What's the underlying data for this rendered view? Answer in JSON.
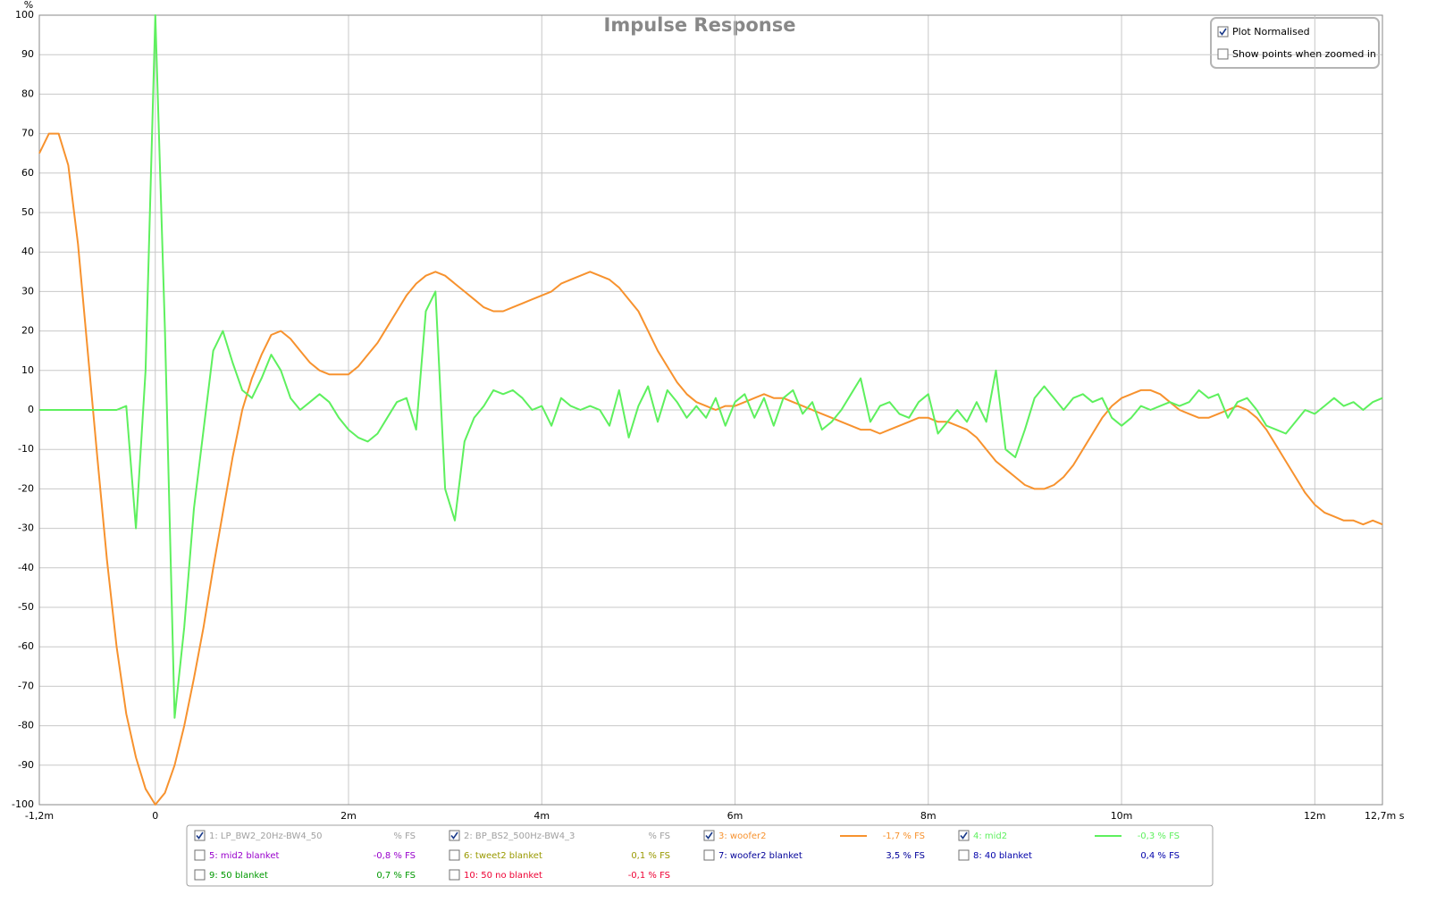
{
  "chart_data": {
    "type": "line",
    "title": "Impulse Response",
    "y_label": "%",
    "xlim": [
      -1.2,
      12.7
    ],
    "ylim": [
      -100,
      100
    ],
    "xticks": [
      {
        "value": -1.2,
        "label": "-1,2m"
      },
      0,
      {
        "value": 2,
        "label": "2m"
      },
      {
        "value": 4,
        "label": "4m"
      },
      {
        "value": 6,
        "label": "6m"
      },
      {
        "value": 8,
        "label": "8m"
      },
      {
        "value": 10,
        "label": "10m"
      },
      {
        "value": 12,
        "label": "12m"
      },
      {
        "value": 12.7,
        "label": "12,7m s"
      }
    ],
    "yticks": [
      -100,
      -90,
      -80,
      -70,
      -60,
      -50,
      -40,
      -30,
      -20,
      -10,
      0,
      10,
      20,
      30,
      40,
      50,
      60,
      70,
      80,
      90,
      100
    ],
    "grid": true,
    "x": [
      -1.2,
      -1.1,
      -1,
      -0.9,
      -0.8,
      -0.7,
      -0.6,
      -0.5,
      -0.4,
      -0.3,
      -0.2,
      -0.1,
      0,
      0.1,
      0.2,
      0.3,
      0.4,
      0.5,
      0.6,
      0.7,
      0.8,
      0.9,
      1,
      1.1,
      1.2,
      1.3,
      1.4,
      1.5,
      1.6,
      1.7,
      1.8,
      1.9,
      2,
      2.1,
      2.2,
      2.3,
      2.4,
      2.5,
      2.6,
      2.7,
      2.8,
      2.9,
      3,
      3.1,
      3.2,
      3.3,
      3.4,
      3.5,
      3.6,
      3.7,
      3.8,
      3.9,
      4,
      4.1,
      4.2,
      4.3,
      4.4,
      4.5,
      4.6,
      4.7,
      4.8,
      4.9,
      5,
      5.1,
      5.2,
      5.3,
      5.4,
      5.5,
      5.6,
      5.7,
      5.8,
      5.9,
      6,
      6.1,
      6.2,
      6.3,
      6.4,
      6.5,
      6.6,
      6.7,
      6.8,
      6.9,
      7,
      7.1,
      7.2,
      7.3,
      7.4,
      7.5,
      7.6,
      7.7,
      7.8,
      7.9,
      8,
      8.1,
      8.2,
      8.3,
      8.4,
      8.5,
      8.6,
      8.7,
      8.8,
      8.9,
      9,
      9.1,
      9.2,
      9.3,
      9.4,
      9.5,
      9.6,
      9.7,
      9.8,
      9.9,
      10,
      10.1,
      10.2,
      10.3,
      10.4,
      10.5,
      10.6,
      10.7,
      10.8,
      10.9,
      11,
      11.1,
      11.2,
      11.3,
      11.4,
      11.5,
      11.6,
      11.7,
      11.8,
      11.9,
      12,
      12.1,
      12.2,
      12.3,
      12.4,
      12.5,
      12.6,
      12.7
    ],
    "series": [
      {
        "name": "1: LP_BW2_20Hz-BW4_50",
        "color": "#a0a0a0",
        "checked": true,
        "readout": "% FS"
      },
      {
        "name": "2: BP_BS2_500Hz-BW4_3",
        "color": "#a0a0a0",
        "checked": true,
        "readout": "% FS"
      },
      {
        "name": "3: woofer2",
        "color": "#f7922e",
        "checked": true,
        "readout": "-1,7 % FS",
        "values": [
          65,
          70,
          70,
          62,
          42,
          15,
          -12,
          -38,
          -60,
          -77,
          -88,
          -96,
          -100,
          -97,
          -90,
          -80,
          -68,
          -55,
          -40,
          -26,
          -12,
          0,
          8,
          14,
          19,
          20,
          18,
          15,
          12,
          10,
          9,
          9,
          9,
          11,
          14,
          17,
          21,
          25,
          29,
          32,
          34,
          35,
          34,
          32,
          30,
          28,
          26,
          25,
          25,
          26,
          27,
          28,
          29,
          30,
          32,
          33,
          34,
          35,
          34,
          33,
          31,
          28,
          25,
          20,
          15,
          11,
          7,
          4,
          2,
          1,
          0,
          1,
          1,
          2,
          3,
          4,
          3,
          3,
          2,
          1,
          0,
          -1,
          -2,
          -3,
          -4,
          -5,
          -5,
          -6,
          -5,
          -4,
          -3,
          -2,
          -2,
          -3,
          -3,
          -4,
          -5,
          -7,
          -10,
          -13,
          -15,
          -17,
          -19,
          -20,
          -20,
          -19,
          -17,
          -14,
          -10,
          -6,
          -2,
          1,
          3,
          4,
          5,
          5,
          4,
          2,
          0,
          -1,
          -2,
          -2,
          -1,
          0,
          1,
          0,
          -2,
          -5,
          -9,
          -13,
          -17,
          -21,
          -24,
          -26,
          -27,
          -28,
          -28,
          -29,
          -28,
          -29
        ]
      },
      {
        "name": "4: mid2",
        "color": "#5ef05e",
        "checked": true,
        "readout": "-0,3 % FS",
        "values": [
          0,
          0,
          0,
          0,
          0,
          0,
          0,
          0,
          0,
          1,
          -30,
          10,
          100,
          20,
          -78,
          -55,
          -25,
          -5,
          15,
          20,
          12,
          5,
          3,
          8,
          14,
          10,
          3,
          0,
          2,
          4,
          2,
          -2,
          -5,
          -7,
          -8,
          -6,
          -2,
          2,
          3,
          -5,
          25,
          30,
          -20,
          -28,
          -8,
          -2,
          1,
          5,
          4,
          5,
          3,
          0,
          1,
          -4,
          3,
          1,
          0,
          1,
          0,
          -4,
          5,
          -7,
          1,
          6,
          -3,
          5,
          2,
          -2,
          1,
          -2,
          3,
          -4,
          2,
          4,
          -2,
          3,
          -4,
          3,
          5,
          -1,
          2,
          -5,
          -3,
          0,
          4,
          8,
          -3,
          1,
          2,
          -1,
          -2,
          2,
          4,
          -6,
          -3,
          0,
          -3,
          2,
          -3,
          10,
          -10,
          -12,
          -5,
          3,
          6,
          3,
          0,
          3,
          4,
          2,
          3,
          -2,
          -4,
          -2,
          1,
          0,
          1,
          2,
          1,
          2,
          5,
          3,
          4,
          -2,
          2,
          3,
          0,
          -4,
          -5,
          -6,
          -3,
          0,
          -1,
          1,
          3,
          1,
          2,
          0,
          2,
          3
        ]
      },
      {
        "name": "5: mid2 blanket",
        "color": "#9900cc",
        "checked": false,
        "readout": "-0,8 % FS"
      },
      {
        "name": "6: tweet2 blanket",
        "color": "#999900",
        "checked": false,
        "readout": "0,1 % FS"
      },
      {
        "name": "7: woofer2 blanket",
        "color": "#000099",
        "checked": false,
        "readout": "3,5 % FS"
      },
      {
        "name": "8: 40 blanket",
        "color": "#0000aa",
        "checked": false,
        "readout": "0,4 % FS"
      },
      {
        "name": "9: 50 blanket",
        "color": "#009900",
        "checked": false,
        "readout": "0,7 % FS"
      },
      {
        "name": "10: 50 no blanket",
        "color": "#ee0033",
        "checked": false,
        "readout": "-0,1 % FS"
      }
    ],
    "options": [
      {
        "label": "Plot Normalised",
        "checked": true
      },
      {
        "label": "Show points when zoomed in",
        "checked": false
      }
    ]
  }
}
